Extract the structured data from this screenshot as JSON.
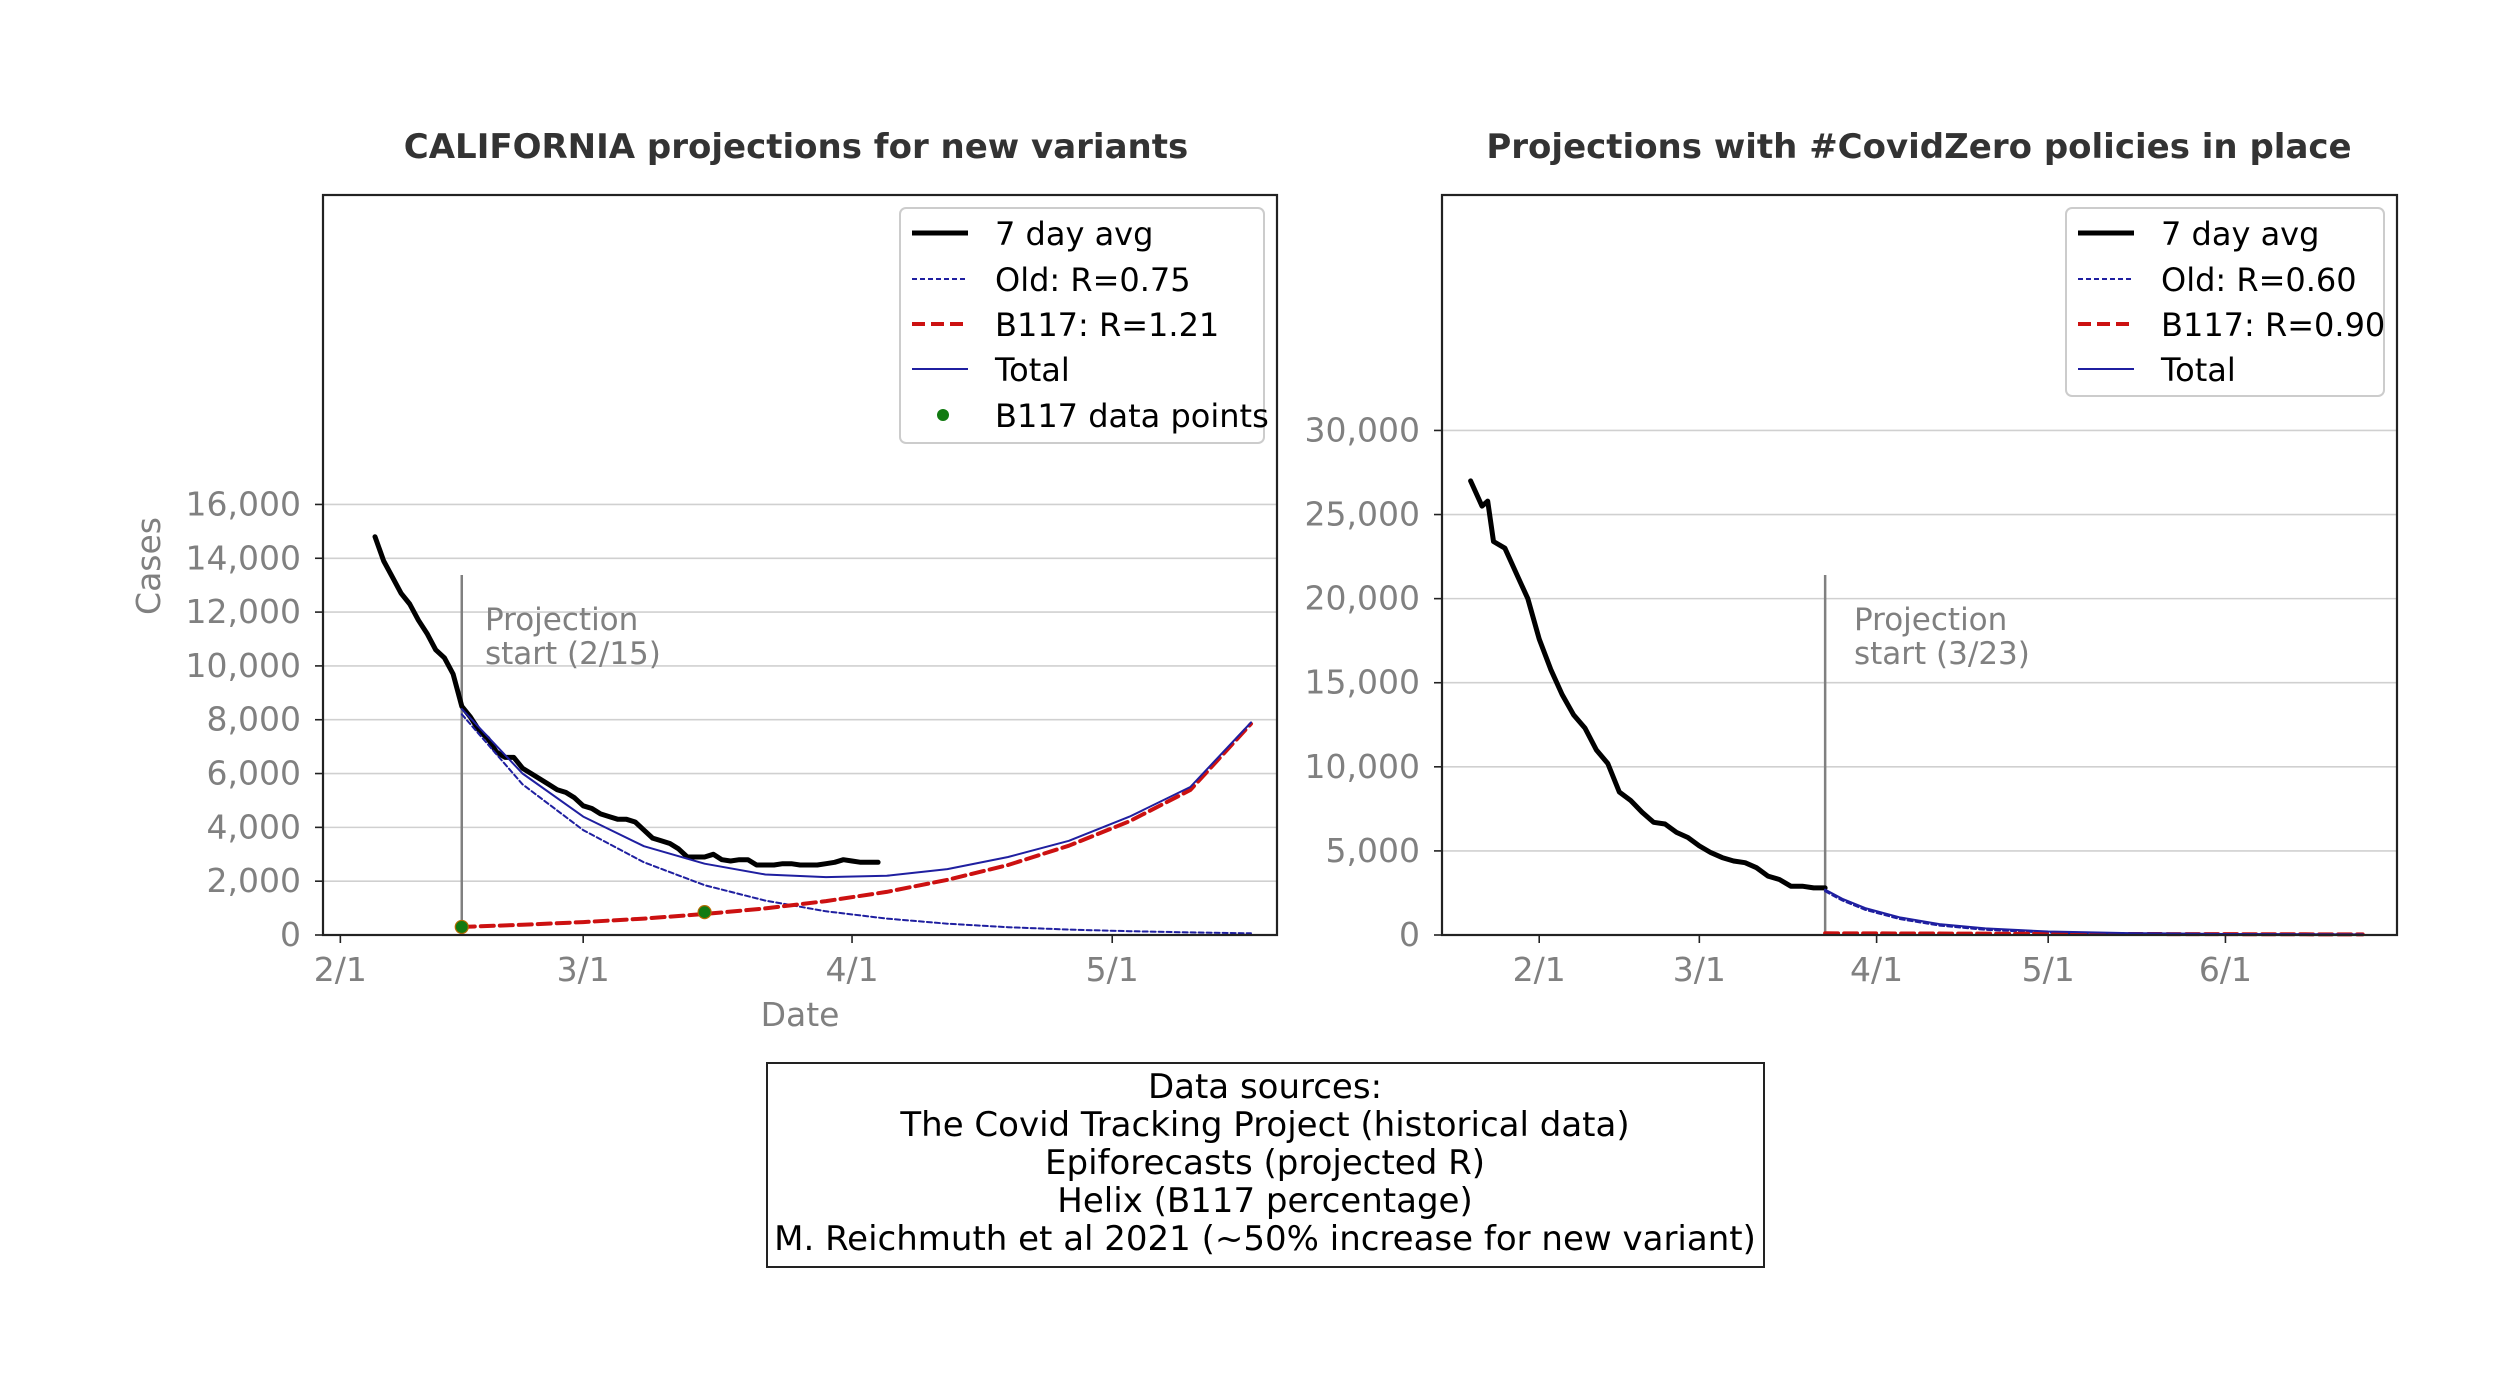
{
  "chart_data": [
    {
      "type": "line",
      "title": "CALIFORNIA projections for new variants",
      "xlabel": "Date",
      "ylabel": "Cases",
      "xlim": [
        "2021-01-30",
        "2021-05-20"
      ],
      "ylim": [
        0,
        27500
      ],
      "x_ticks": [
        "2/1",
        "3/1",
        "4/1",
        "5/1"
      ],
      "y_ticks": [
        "0",
        "2,000",
        "4,000",
        "6,000",
        "8,000",
        "10,000",
        "12,000",
        "14,000",
        "16,000"
      ],
      "y_tick_values": [
        0,
        2000,
        4000,
        6000,
        8000,
        10000,
        12000,
        14000,
        16000
      ],
      "grid": "horizontal",
      "legend_position": "top-right",
      "legend": [
        "7 day avg",
        "Old: R=0.75",
        "B117: R=1.21",
        "Total",
        "B117 data points"
      ],
      "annotation": {
        "text_lines": [
          "Projection",
          "start (2/15)"
        ],
        "date": "2021-02-15"
      },
      "series": [
        {
          "name": "7 day avg",
          "style": "solid-thick",
          "color": "#000000",
          "x": [
            "2021-02-05",
            "2021-02-06",
            "2021-02-07",
            "2021-02-08",
            "2021-02-09",
            "2021-02-10",
            "2021-02-11",
            "2021-02-12",
            "2021-02-13",
            "2021-02-14",
            "2021-02-15",
            "2021-02-16",
            "2021-02-17",
            "2021-02-18",
            "2021-02-19",
            "2021-02-20",
            "2021-02-21",
            "2021-02-22",
            "2021-02-23",
            "2021-02-24",
            "2021-02-25",
            "2021-02-26",
            "2021-02-27",
            "2021-02-28",
            "2021-03-01",
            "2021-03-02",
            "2021-03-03",
            "2021-03-04",
            "2021-03-05",
            "2021-03-06",
            "2021-03-07",
            "2021-03-08",
            "2021-03-09",
            "2021-03-10",
            "2021-03-11",
            "2021-03-12",
            "2021-03-13",
            "2021-03-14",
            "2021-03-15",
            "2021-03-16",
            "2021-03-17",
            "2021-03-18",
            "2021-03-19",
            "2021-03-20",
            "2021-03-21",
            "2021-03-22",
            "2021-03-23",
            "2021-03-24",
            "2021-03-25",
            "2021-03-26",
            "2021-03-27",
            "2021-03-28",
            "2021-03-29",
            "2021-03-30",
            "2021-03-31",
            "2021-04-01",
            "2021-04-02",
            "2021-04-03",
            "2021-04-04"
          ],
          "y": [
            14800,
            13900,
            13300,
            12700,
            12300,
            11700,
            11200,
            10600,
            10300,
            9700,
            8500,
            8100,
            7600,
            7300,
            6800,
            6600,
            6600,
            6200,
            6000,
            5800,
            5600,
            5400,
            5300,
            5100,
            4800,
            4700,
            4500,
            4400,
            4300,
            4300,
            4200,
            3900,
            3600,
            3500,
            3400,
            3200,
            2900,
            2900,
            2900,
            3000,
            2800,
            2750,
            2800,
            2800,
            2600,
            2600,
            2600,
            2650,
            2650,
            2600,
            2600,
            2600,
            2650,
            2700,
            2800,
            2750,
            2700,
            2700,
            2700
          ]
        },
        {
          "name": "Old: R=0.75",
          "style": "dotted-thin",
          "color": "#1f1fa0",
          "x": [
            "2021-02-15",
            "2021-02-22",
            "2021-03-01",
            "2021-03-08",
            "2021-03-15",
            "2021-03-22",
            "2021-03-29",
            "2021-04-05",
            "2021-04-12",
            "2021-04-19",
            "2021-04-26",
            "2021-05-03",
            "2021-05-10",
            "2021-05-17"
          ],
          "y": [
            8200,
            5600,
            3900,
            2700,
            1850,
            1280,
            880,
            610,
            420,
            290,
            200,
            140,
            95,
            65
          ]
        },
        {
          "name": "B117: R=1.21",
          "style": "dashed",
          "color": "#cc1111",
          "x": [
            "2021-02-15",
            "2021-02-22",
            "2021-03-01",
            "2021-03-08",
            "2021-03-15",
            "2021-03-22",
            "2021-03-29",
            "2021-04-05",
            "2021-04-12",
            "2021-04-19",
            "2021-04-26",
            "2021-05-03",
            "2021-05-10",
            "2021-05-17"
          ],
          "y": [
            300,
            380,
            480,
            610,
            780,
            990,
            1260,
            1600,
            2050,
            2600,
            3320,
            4230,
            5390,
            7850
          ]
        },
        {
          "name": "Total",
          "style": "solid-thin",
          "color": "#1f1fa0",
          "x": [
            "2021-02-15",
            "2021-02-22",
            "2021-03-01",
            "2021-03-08",
            "2021-03-15",
            "2021-03-22",
            "2021-03-29",
            "2021-04-05",
            "2021-04-12",
            "2021-04-19",
            "2021-04-26",
            "2021-05-03",
            "2021-05-10",
            "2021-05-17"
          ],
          "y": [
            8400,
            6000,
            4400,
            3300,
            2650,
            2250,
            2150,
            2200,
            2450,
            2900,
            3500,
            4400,
            5500,
            7900
          ]
        },
        {
          "name": "B117 data points",
          "style": "markers",
          "color": "#117a11",
          "x": [
            "2021-02-15",
            "2021-03-15"
          ],
          "y": [
            300,
            850
          ]
        }
      ]
    },
    {
      "type": "line",
      "title": "Projections with #CovidZero policies in place",
      "xlabel": "",
      "ylabel": "",
      "xlim": [
        "2021-01-15",
        "2021-07-01"
      ],
      "ylim": [
        0,
        44000
      ],
      "x_ticks": [
        "2/1",
        "3/1",
        "4/1",
        "5/1",
        "6/1"
      ],
      "y_ticks": [
        "0",
        "5,000",
        "10,000",
        "15,000",
        "20,000",
        "25,000",
        "30,000"
      ],
      "y_tick_values": [
        0,
        5000,
        10000,
        15000,
        20000,
        25000,
        30000
      ],
      "grid": "horizontal",
      "legend_position": "top-right",
      "legend": [
        "7 day avg",
        "Old: R=0.60",
        "B117: R=0.90",
        "Total"
      ],
      "annotation": {
        "text_lines": [
          "Projection",
          "start (3/23)"
        ],
        "date": "2021-03-23"
      },
      "series": [
        {
          "name": "7 day avg",
          "style": "solid-thick",
          "color": "#000000",
          "x": [
            "2021-01-20",
            "2021-01-22",
            "2021-01-23",
            "2021-01-24",
            "2021-01-26",
            "2021-01-28",
            "2021-01-30",
            "2021-02-01",
            "2021-02-03",
            "2021-02-05",
            "2021-02-07",
            "2021-02-09",
            "2021-02-11",
            "2021-02-13",
            "2021-02-15",
            "2021-02-17",
            "2021-02-19",
            "2021-02-21",
            "2021-02-23",
            "2021-02-25",
            "2021-02-27",
            "2021-03-01",
            "2021-03-03",
            "2021-03-05",
            "2021-03-07",
            "2021-03-09",
            "2021-03-11",
            "2021-03-13",
            "2021-03-15",
            "2021-03-17",
            "2021-03-19",
            "2021-03-21",
            "2021-03-23"
          ],
          "y": [
            27000,
            25500,
            25800,
            23400,
            23000,
            21500,
            20000,
            17600,
            15800,
            14300,
            13100,
            12300,
            11000,
            10200,
            8500,
            8000,
            7300,
            6700,
            6600,
            6100,
            5800,
            5300,
            4900,
            4600,
            4400,
            4300,
            4000,
            3500,
            3300,
            2900,
            2900,
            2800,
            2800
          ]
        },
        {
          "name": "Old: R=0.60",
          "style": "dotted-thin",
          "color": "#1f1fa0",
          "x": [
            "2021-03-23",
            "2021-03-26",
            "2021-03-30",
            "2021-04-05",
            "2021-04-12",
            "2021-04-20",
            "2021-05-01",
            "2021-05-15",
            "2021-06-01",
            "2021-06-25"
          ],
          "y": [
            2600,
            2050,
            1500,
            950,
            560,
            310,
            140,
            50,
            15,
            3
          ]
        },
        {
          "name": "B117: R=0.90",
          "style": "dashed",
          "color": "#cc1111",
          "x": [
            "2021-03-23",
            "2021-04-15",
            "2021-05-15",
            "2021-06-15",
            "2021-06-25"
          ],
          "y": [
            100,
            85,
            60,
            40,
            35
          ]
        },
        {
          "name": "Total",
          "style": "solid-thin",
          "color": "#1f1fa0",
          "x": [
            "2021-03-23",
            "2021-03-26",
            "2021-03-30",
            "2021-04-05",
            "2021-04-12",
            "2021-04-20",
            "2021-05-01",
            "2021-05-15",
            "2021-06-01",
            "2021-06-25"
          ],
          "y": [
            2700,
            2150,
            1600,
            1050,
            650,
            390,
            210,
            110,
            60,
            38
          ]
        }
      ]
    }
  ],
  "sources": {
    "lines": [
      "Data sources:",
      "The Covid Tracking Project (historical data)",
      "Epiforecasts (projected R)",
      "Helix (B117 percentage)",
      "M. Reichmuth et al 2021 (~50% increase for new variant)"
    ]
  }
}
